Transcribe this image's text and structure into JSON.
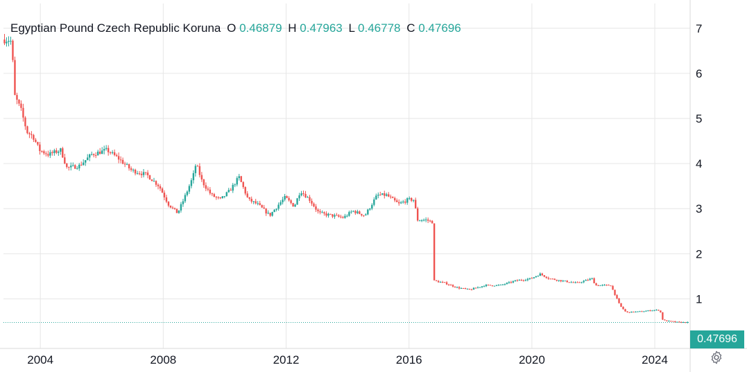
{
  "legend": {
    "title": "Egyptian Pound Czech Republic Koruna",
    "o_label": "O",
    "o_value": "0.46879",
    "h_label": "H",
    "h_value": "0.47963",
    "l_label": "L",
    "l_value": "0.46778",
    "c_label": "C",
    "c_value": "0.47696"
  },
  "last_price_label": "0.47696",
  "settings_icon": "gear-icon",
  "colors": {
    "up": "#26a69a",
    "down": "#ef5350",
    "grid": "#e6e6e6",
    "axis_text": "#131722",
    "price_line": "#26a69a"
  },
  "chart_data": {
    "type": "candlestick",
    "title": "Egyptian Pound Czech Republic Koruna",
    "xlabel": "",
    "ylabel": "",
    "x_range": [
      2002.8,
      2025.15
    ],
    "ylim": [
      -0.1,
      7.55
    ],
    "y_ticks": [
      1,
      2,
      3,
      4,
      5,
      6,
      7
    ],
    "x_ticks": [
      "2004",
      "2008",
      "2012",
      "2016",
      "2020",
      "2024"
    ],
    "grid": true,
    "last_value": 0.47696,
    "series_points": [
      [
        2002.8,
        6.75
      ],
      [
        2003.0,
        6.75
      ],
      [
        2003.1,
        6.7
      ],
      [
        2003.2,
        5.5
      ],
      [
        2003.4,
        5.2
      ],
      [
        2003.6,
        4.7
      ],
      [
        2003.8,
        4.6
      ],
      [
        2004.0,
        4.3
      ],
      [
        2004.3,
        4.2
      ],
      [
        2004.7,
        4.3
      ],
      [
        2004.9,
        3.9
      ],
      [
        2005.3,
        3.95
      ],
      [
        2005.7,
        4.2
      ],
      [
        2006.2,
        4.3
      ],
      [
        2006.6,
        4.1
      ],
      [
        2007.0,
        3.85
      ],
      [
        2007.5,
        3.75
      ],
      [
        2007.9,
        3.5
      ],
      [
        2008.2,
        3.1
      ],
      [
        2008.5,
        2.9
      ],
      [
        2008.7,
        3.2
      ],
      [
        2009.0,
        3.7
      ],
      [
        2009.1,
        4.0
      ],
      [
        2009.3,
        3.6
      ],
      [
        2009.6,
        3.3
      ],
      [
        2009.9,
        3.2
      ],
      [
        2010.2,
        3.4
      ],
      [
        2010.5,
        3.7
      ],
      [
        2010.8,
        3.2
      ],
      [
        2011.1,
        3.1
      ],
      [
        2011.5,
        2.85
      ],
      [
        2011.8,
        3.1
      ],
      [
        2012.0,
        3.25
      ],
      [
        2012.3,
        3.05
      ],
      [
        2012.5,
        3.4
      ],
      [
        2012.8,
        3.2
      ],
      [
        2013.1,
        2.9
      ],
      [
        2013.5,
        2.85
      ],
      [
        2013.9,
        2.8
      ],
      [
        2014.2,
        2.95
      ],
      [
        2014.6,
        2.85
      ],
      [
        2015.0,
        3.3
      ],
      [
        2015.3,
        3.3
      ],
      [
        2015.7,
        3.1
      ],
      [
        2016.0,
        3.2
      ],
      [
        2016.2,
        3.2
      ],
      [
        2016.3,
        2.75
      ],
      [
        2016.6,
        2.75
      ],
      [
        2016.8,
        2.7
      ],
      [
        2016.85,
        1.4
      ],
      [
        2017.2,
        1.35
      ],
      [
        2017.6,
        1.25
      ],
      [
        2018.0,
        1.2
      ],
      [
        2018.5,
        1.3
      ],
      [
        2019.0,
        1.3
      ],
      [
        2019.5,
        1.4
      ],
      [
        2020.0,
        1.45
      ],
      [
        2020.3,
        1.55
      ],
      [
        2020.6,
        1.45
      ],
      [
        2021.0,
        1.4
      ],
      [
        2021.5,
        1.35
      ],
      [
        2022.0,
        1.45
      ],
      [
        2022.1,
        1.3
      ],
      [
        2022.6,
        1.3
      ],
      [
        2022.9,
        0.85
      ],
      [
        2023.1,
        0.7
      ],
      [
        2023.6,
        0.72
      ],
      [
        2024.0,
        0.75
      ],
      [
        2024.2,
        0.75
      ],
      [
        2024.3,
        0.52
      ],
      [
        2024.8,
        0.48
      ],
      [
        2025.1,
        0.477
      ]
    ]
  }
}
